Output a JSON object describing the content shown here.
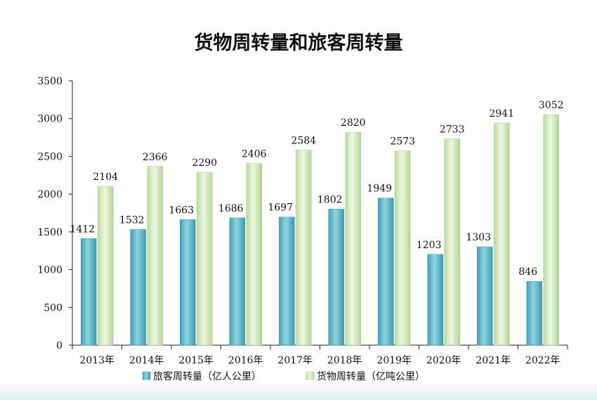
{
  "chart_data": {
    "type": "bar",
    "title": "货物周转量和旅客周转量",
    "xlabel": "",
    "ylabel": "",
    "categories": [
      "2013年",
      "2014年",
      "2015年",
      "2016年",
      "2017年",
      "2018年",
      "2019年",
      "2020年",
      "2021年",
      "2022年"
    ],
    "series": [
      {
        "name": "旅客周转量（亿人公里）",
        "values": [
          1412,
          1532,
          1663,
          1686,
          1697,
          1802,
          1949,
          1203,
          1303,
          846
        ],
        "color": "#5db8c9"
      },
      {
        "name": "货物周转量（亿吨公里）",
        "values": [
          2104,
          2366,
          2290,
          2406,
          2584,
          2820,
          2573,
          2733,
          2941,
          3052
        ],
        "color": "#d6ecbf"
      }
    ],
    "yticks": [
      "0",
      "500",
      "1000",
      "1500",
      "2000",
      "2500",
      "3000",
      "3500"
    ],
    "ylim": [
      0,
      3500
    ],
    "grid": false,
    "legend": "bottom"
  }
}
